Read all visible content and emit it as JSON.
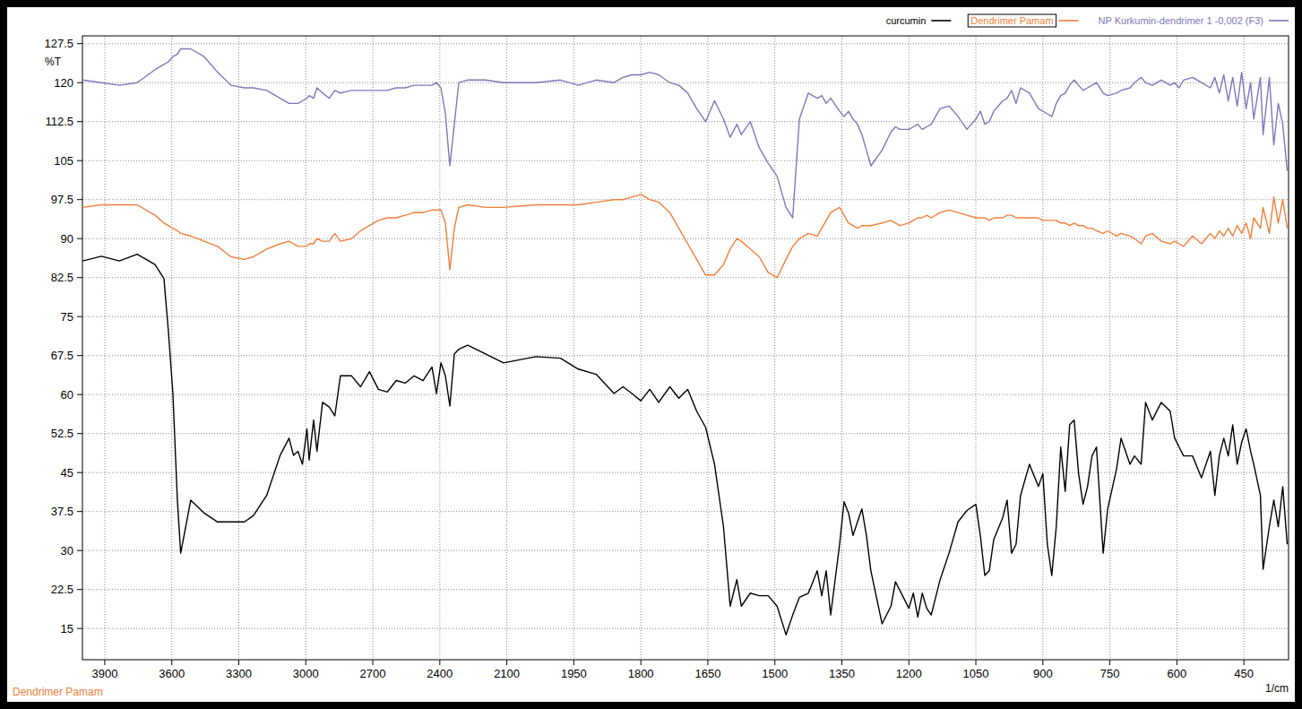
{
  "chart_data": {
    "type": "line",
    "x_label": "1/cm",
    "y_label": "%T",
    "x": [
      4000,
      3915,
      3835,
      3755,
      3675,
      3635,
      3615,
      3595,
      3575,
      3560,
      3515,
      3455,
      3395,
      3335,
      3275,
      3235,
      3175,
      3115,
      3075,
      3055,
      3035,
      3015,
      2995,
      2985,
      2965,
      2950,
      2925,
      2895,
      2870,
      2845,
      2795,
      2755,
      2715,
      2675,
      2635,
      2595,
      2555,
      2515,
      2475,
      2435,
      2415,
      2395,
      2375,
      2355,
      2335,
      2315,
      2275,
      2195,
      2115,
      2035,
      1980,
      1940,
      1900,
      1860,
      1840,
      1820,
      1800,
      1780,
      1760,
      1735,
      1715,
      1695,
      1675,
      1655,
      1635,
      1615,
      1600,
      1585,
      1575,
      1555,
      1535,
      1515,
      1495,
      1475,
      1460,
      1445,
      1425,
      1405,
      1395,
      1385,
      1375,
      1355,
      1345,
      1335,
      1325,
      1315,
      1305,
      1295,
      1285,
      1260,
      1240,
      1230,
      1220,
      1200,
      1190,
      1180,
      1170,
      1160,
      1150,
      1130,
      1110,
      1090,
      1070,
      1050,
      1040,
      1030,
      1020,
      1010,
      990,
      980,
      970,
      960,
      950,
      930,
      910,
      900,
      890,
      880,
      870,
      860,
      850,
      840,
      830,
      820,
      810,
      800,
      790,
      780,
      765,
      755,
      735,
      725,
      705,
      695,
      680,
      670,
      655,
      635,
      615,
      605,
      595,
      585,
      565,
      545,
      525,
      515,
      505,
      495,
      485,
      475,
      465,
      455,
      445,
      435,
      428,
      413,
      407,
      393,
      383,
      373,
      363,
      353
    ],
    "series": [
      {
        "name": "curcumin",
        "color": "#000000",
        "values": [
          85.7,
          86.6,
          85.7,
          87,
          85,
          82.3,
          72.1,
          60.2,
          39.7,
          29.5,
          39.7,
          37.2,
          35.5,
          35.5,
          35.5,
          36.7,
          40.6,
          48.3,
          51.6,
          48.3,
          49.1,
          46.6,
          53.4,
          47.4,
          55.1,
          49.1,
          58.5,
          57.6,
          55.9,
          63.6,
          63.6,
          61.5,
          64.4,
          61.0,
          60.5,
          62.7,
          62.2,
          63.6,
          62.7,
          65.3,
          60.2,
          66.1,
          63.6,
          57.8,
          67.8,
          68.7,
          69.5,
          67.8,
          66.1,
          67.3,
          67.0,
          64.9,
          63.9,
          60.2,
          61.5,
          60.2,
          58.8,
          61.0,
          58.5,
          61.5,
          59.3,
          61.0,
          56.8,
          53.7,
          46.6,
          34.6,
          19.3,
          24.4,
          19.3,
          21.8,
          21.3,
          21.3,
          19.3,
          13.8,
          17.6,
          21.0,
          21.8,
          26.1,
          21.3,
          26.1,
          17.6,
          31.2,
          39.4,
          37.2,
          32.9,
          35.5,
          38.0,
          32.9,
          26.1,
          15.9,
          19.3,
          24.0,
          22.3,
          18.9,
          21.8,
          17.2,
          21.8,
          18.9,
          17.6,
          24.4,
          29.5,
          35.5,
          37.7,
          38.9,
          32.9,
          25.2,
          26.1,
          32.1,
          36.3,
          39.7,
          29.5,
          31.2,
          40.6,
          46.6,
          42.3,
          44.8,
          31.2,
          25.2,
          34.6,
          49.9,
          41.4,
          54.2,
          55.1,
          44.8,
          38.9,
          42.3,
          48.2,
          49.9,
          29.5,
          38.0,
          45.7,
          51.6,
          46.6,
          48.2,
          46.6,
          58.5,
          55.1,
          58.5,
          56.8,
          51.6,
          49.9,
          48.2,
          48.2,
          44.0,
          49.1,
          40.6,
          48.2,
          51.6,
          48.2,
          54.2,
          46.6,
          50.8,
          53.4,
          49.1,
          46.6,
          40.6,
          26.4,
          34.6,
          39.7,
          34.6,
          42.3,
          31.2
        ]
      },
      {
        "name": "Dendrimer Pamam",
        "color": "#f07f3c",
        "values": [
          96,
          96.5,
          96.5,
          96.5,
          94.5,
          93,
          92.5,
          92,
          91.5,
          91,
          90.5,
          89.5,
          88.5,
          86.5,
          86,
          86.5,
          88,
          89,
          89.5,
          89,
          88.5,
          88.5,
          88.5,
          89,
          89,
          90,
          89.5,
          89.5,
          91,
          89.5,
          90,
          91.5,
          92.5,
          93.5,
          94,
          94,
          94.5,
          95,
          95,
          95.5,
          95.5,
          95.5,
          93,
          84,
          92,
          96,
          96.5,
          96,
          96,
          96.5,
          96.5,
          96.5,
          97,
          97.5,
          97.5,
          98,
          98.5,
          97.5,
          97,
          95,
          92,
          89,
          86,
          83,
          83,
          85,
          88,
          90,
          89.5,
          88,
          86.5,
          83.5,
          82.5,
          86,
          88.5,
          90,
          91,
          90.5,
          92,
          93.5,
          95,
          96,
          94.5,
          93,
          92.5,
          92,
          92.5,
          92.5,
          92.5,
          93,
          93.5,
          93,
          92.5,
          93,
          93.5,
          94,
          94,
          94.5,
          94,
          95,
          95.5,
          95,
          94.5,
          94,
          94,
          94,
          93.5,
          94,
          94,
          94.5,
          94.5,
          94,
          94,
          94,
          94,
          93.5,
          93.5,
          93.5,
          93.5,
          93,
          93,
          92.5,
          93,
          92.5,
          92.5,
          92,
          92,
          91.5,
          91,
          91.5,
          90.5,
          91,
          90.5,
          90,
          89,
          90.5,
          91,
          89.5,
          89,
          89.5,
          89,
          88.5,
          90.5,
          89,
          91,
          90,
          91.5,
          90.5,
          92,
          90.5,
          92.5,
          91,
          93,
          90,
          94,
          92,
          96,
          91,
          98,
          93,
          97.5,
          92
        ]
      },
      {
        "name": "NP Kurkumin-dendrimer 1 -0,002 (F3)",
        "color": "#7b79b9",
        "values": [
          120.5,
          120,
          119.5,
          120,
          122.5,
          123.5,
          124,
          125,
          125.5,
          126.5,
          126.5,
          125,
          122,
          119.5,
          119,
          119,
          118.5,
          117,
          116,
          116,
          116,
          116.5,
          117,
          117.5,
          117,
          119,
          118,
          117,
          118.5,
          118,
          118.5,
          118.5,
          118.5,
          118.5,
          118.5,
          119,
          119,
          119.5,
          119.5,
          119.5,
          120,
          119,
          114,
          104,
          112,
          120,
          120.5,
          120.5,
          120,
          120,
          120.5,
          119.5,
          120.5,
          120,
          121,
          121.5,
          121.5,
          122,
          121.5,
          120,
          119.5,
          118,
          115,
          112.5,
          116.5,
          113,
          109.5,
          112,
          110,
          112.5,
          107.5,
          104.5,
          102,
          96,
          94,
          113,
          118,
          117,
          117.5,
          116,
          117,
          114.5,
          113.5,
          114.5,
          113,
          112,
          110,
          107,
          104,
          107,
          110.5,
          111.5,
          111,
          111,
          111.5,
          112,
          111,
          111.5,
          112,
          115,
          115.5,
          113.5,
          111,
          113,
          114.5,
          112,
          112.5,
          114.5,
          116.5,
          117,
          118.5,
          116,
          119,
          118,
          115,
          114.5,
          114,
          113.5,
          116,
          117.5,
          118,
          119.5,
          120.5,
          119.5,
          118.5,
          119,
          119.5,
          120,
          118,
          117.5,
          118,
          118.5,
          119,
          120,
          121,
          120,
          119.5,
          120.5,
          119.5,
          120,
          119,
          120.5,
          121,
          120,
          119,
          121,
          118,
          121.5,
          116.5,
          121,
          115.5,
          122,
          115,
          120,
          113,
          121,
          110,
          121,
          108,
          116,
          112,
          103
        ]
      }
    ],
    "xlim": [
      4000,
      350
    ],
    "ylim": [
      9,
      129
    ],
    "xticks": [
      3900,
      3600,
      3300,
      3000,
      2700,
      2400,
      2100,
      1950,
      1800,
      1650,
      1500,
      1350,
      1200,
      1050,
      900,
      750,
      600,
      450
    ],
    "yticks": [
      15,
      22.5,
      30,
      37.5,
      45,
      52.5,
      60,
      67.5,
      75,
      82.5,
      90,
      97.5,
      105,
      112.5,
      120,
      127.5
    ],
    "grid": true,
    "legend": "top-right",
    "annotations": [
      "Dendrimer Pamam"
    ]
  }
}
